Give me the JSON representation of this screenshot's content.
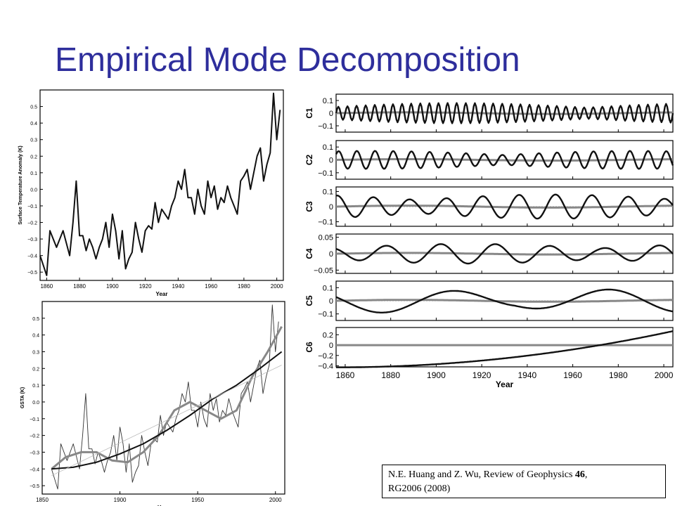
{
  "slide": {
    "title": "Empirical Mode Decomposition",
    "citation_authors": "N.E. Huang and Z. Wu, Review of Geophysics",
    "citation_volume": "46",
    "citation_rest": "RG2006 (2008)"
  },
  "colors": {
    "title": "#2e2e9c",
    "signal": "#111111",
    "mean": "#888888"
  },
  "chart_data": [
    {
      "id": "anomaly",
      "type": "line",
      "xlabel": "Year",
      "ylabel": "Surface Temperature Anomaly (K)",
      "xlim": [
        1856,
        2004
      ],
      "ylim": [
        -0.55,
        0.6
      ],
      "xticks": [
        1860,
        1880,
        1900,
        1920,
        1940,
        1960,
        1980,
        2000
      ],
      "yticks": [
        -0.5,
        -0.4,
        -0.3,
        -0.2,
        -0.1,
        0,
        0.1,
        0.2,
        0.3,
        0.4,
        0.5
      ],
      "grid": false,
      "series": [
        {
          "x": [
            1856,
            1860,
            1862,
            1866,
            1870,
            1874,
            1876,
            1878,
            1880,
            1882,
            1884,
            1886,
            1888,
            1890,
            1892,
            1894,
            1896,
            1898,
            1900,
            1902,
            1904,
            1906,
            1908,
            1910,
            1912,
            1914,
            1916,
            1918,
            1920,
            1922,
            1924,
            1926,
            1928,
            1930,
            1932,
            1934,
            1936,
            1938,
            1940,
            1942,
            1944,
            1946,
            1948,
            1950,
            1952,
            1954,
            1956,
            1958,
            1960,
            1962,
            1964,
            1966,
            1968,
            1970,
            1972,
            1974,
            1976,
            1978,
            1980,
            1982,
            1984,
            1986,
            1988,
            1990,
            1992,
            1994,
            1996,
            1998,
            2000,
            2002
          ],
          "y": [
            -0.4,
            -0.52,
            -0.25,
            -0.35,
            -0.25,
            -0.4,
            -0.2,
            0.05,
            -0.28,
            -0.28,
            -0.37,
            -0.3,
            -0.35,
            -0.42,
            -0.35,
            -0.3,
            -0.2,
            -0.35,
            -0.15,
            -0.25,
            -0.42,
            -0.25,
            -0.48,
            -0.42,
            -0.38,
            -0.2,
            -0.3,
            -0.38,
            -0.25,
            -0.22,
            -0.24,
            -0.08,
            -0.2,
            -0.12,
            -0.15,
            -0.18,
            -0.1,
            -0.05,
            0.05,
            0.0,
            0.12,
            -0.05,
            -0.05,
            -0.15,
            0.0,
            -0.1,
            -0.15,
            0.05,
            -0.05,
            0.02,
            -0.12,
            -0.05,
            -0.08,
            0.02,
            -0.05,
            -0.1,
            -0.15,
            0.05,
            0.08,
            0.12,
            0.0,
            0.1,
            0.2,
            0.25,
            0.05,
            0.15,
            0.22,
            0.58,
            0.3,
            0.48
          ]
        }
      ]
    },
    {
      "id": "gsta",
      "type": "line",
      "xlabel": "Year",
      "ylabel": "GSTA (K)",
      "xlim": [
        1850,
        2006
      ],
      "ylim": [
        -0.55,
        0.6
      ],
      "xticks": [
        1850,
        1900,
        1950,
        2000
      ],
      "yticks": [
        -0.5,
        -0.4,
        -0.3,
        -0.2,
        -0.1,
        0,
        0.1,
        0.2,
        0.3,
        0.4,
        0.5
      ],
      "grid": false,
      "series": [
        {
          "x": [
            1856,
            1860,
            1862,
            1866,
            1870,
            1874,
            1876,
            1878,
            1880,
            1882,
            1884,
            1886,
            1888,
            1890,
            1892,
            1894,
            1896,
            1898,
            1900,
            1902,
            1904,
            1906,
            1908,
            1910,
            1912,
            1914,
            1916,
            1918,
            1920,
            1922,
            1924,
            1926,
            1928,
            1930,
            1932,
            1934,
            1936,
            1938,
            1940,
            1942,
            1944,
            1946,
            1948,
            1950,
            1952,
            1954,
            1956,
            1958,
            1960,
            1962,
            1964,
            1966,
            1968,
            1970,
            1972,
            1974,
            1976,
            1978,
            1980,
            1982,
            1984,
            1986,
            1988,
            1990,
            1992,
            1994,
            1996,
            1998,
            2000,
            2002
          ],
          "y": [
            -0.4,
            -0.52,
            -0.25,
            -0.35,
            -0.25,
            -0.4,
            -0.2,
            0.05,
            -0.28,
            -0.28,
            -0.37,
            -0.3,
            -0.35,
            -0.42,
            -0.35,
            -0.3,
            -0.2,
            -0.35,
            -0.15,
            -0.25,
            -0.42,
            -0.25,
            -0.48,
            -0.42,
            -0.38,
            -0.2,
            -0.3,
            -0.38,
            -0.25,
            -0.22,
            -0.24,
            -0.08,
            -0.2,
            -0.12,
            -0.15,
            -0.18,
            -0.1,
            -0.05,
            0.05,
            0.0,
            0.12,
            -0.05,
            -0.05,
            -0.15,
            0.0,
            -0.1,
            -0.15,
            0.05,
            -0.05,
            0.02,
            -0.12,
            -0.05,
            -0.08,
            0.02,
            -0.05,
            -0.1,
            -0.15,
            0.05,
            0.08,
            0.12,
            0.0,
            0.1,
            0.2,
            0.25,
            0.05,
            0.15,
            0.22,
            0.58,
            0.3,
            0.48
          ]
        },
        {
          "x": [
            1856,
            1865,
            1875,
            1885,
            1895,
            1905,
            1915,
            1925,
            1935,
            1945,
            1955,
            1965,
            1975,
            1985,
            1995,
            2004
          ],
          "y": [
            -0.4,
            -0.33,
            -0.3,
            -0.3,
            -0.35,
            -0.36,
            -0.3,
            -0.2,
            -0.05,
            0.0,
            -0.05,
            -0.1,
            -0.05,
            0.15,
            0.3,
            0.45
          ]
        },
        {
          "x": [
            1856,
            1870,
            1885,
            1900,
            1915,
            1930,
            1945,
            1960,
            1975,
            1990,
            2004
          ],
          "y": [
            -0.4,
            -0.39,
            -0.36,
            -0.31,
            -0.25,
            -0.17,
            -0.08,
            0.02,
            0.1,
            0.2,
            0.3
          ]
        },
        {
          "x": [
            1856,
            2004
          ],
          "y": [
            -0.44,
            0.22
          ]
        }
      ]
    },
    {
      "id": "imfs",
      "type": "line",
      "xlabel": "Year",
      "xlim": [
        1856,
        2004
      ],
      "xticks": [
        1860,
        1880,
        1900,
        1920,
        1940,
        1960,
        1980,
        2000
      ],
      "panels": [
        {
          "label": "C1",
          "ylim": [
            -0.15,
            0.15
          ],
          "yticks": [
            0.1,
            0,
            -0.1
          ],
          "period": 4,
          "amp": 0.08
        },
        {
          "label": "C2",
          "ylim": [
            -0.15,
            0.15
          ],
          "yticks": [
            0.1,
            0,
            -0.1
          ],
          "period": 8,
          "amp": 0.07
        },
        {
          "label": "C3",
          "ylim": [
            -0.13,
            0.13
          ],
          "yticks": [
            0.1,
            0,
            -0.1
          ],
          "period": 16,
          "amp": 0.08
        },
        {
          "label": "C4",
          "ylim": [
            -0.06,
            0.06
          ],
          "yticks": [
            0.05,
            0,
            -0.05
          ],
          "period": 24,
          "amp": 0.03
        },
        {
          "label": "C5",
          "ylim": [
            -0.15,
            0.15
          ],
          "yticks": [
            0.1,
            0,
            -0.1
          ],
          "period": 66,
          "amp": 0.09
        },
        {
          "label": "C6",
          "ylim": [
            -0.42,
            0.34
          ],
          "yticks": [
            0.2,
            0,
            -0.2,
            -0.4
          ],
          "trend_start": -0.43,
          "trend_end": 0.27
        }
      ]
    }
  ]
}
